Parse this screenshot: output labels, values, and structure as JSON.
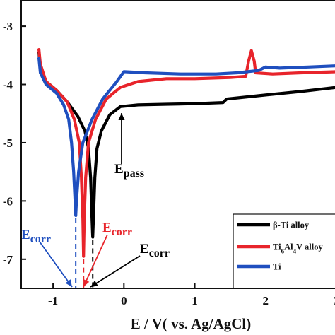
{
  "chart_data": {
    "type": "line",
    "title": "",
    "xlabel": "E / V( vs. Ag/AgCl)",
    "ylabel": "",
    "xlim": [
      -1.45,
      3.0
    ],
    "ylim": [
      -7.5,
      -2.55
    ],
    "x_ticks": [
      "-1",
      "0",
      "1",
      "2",
      "3"
    ],
    "y_ticks": [
      "-3",
      "-4",
      "-5",
      "-6",
      "-7"
    ],
    "grid": false,
    "legend_position": "bottom-right",
    "series": [
      {
        "name": "β-Ti alloy",
        "color": "#000000",
        "points": [
          [
            -1.2,
            -3.45
          ],
          [
            -1.18,
            -3.7
          ],
          [
            -1.1,
            -3.95
          ],
          [
            -0.95,
            -4.1
          ],
          [
            -0.8,
            -4.3
          ],
          [
            -0.65,
            -4.55
          ],
          [
            -0.55,
            -4.8
          ],
          [
            -0.5,
            -5.1
          ],
          [
            -0.47,
            -5.6
          ],
          [
            -0.45,
            -6.3
          ],
          [
            -0.44,
            -6.62
          ],
          [
            -0.43,
            -6.3
          ],
          [
            -0.41,
            -5.6
          ],
          [
            -0.38,
            -5.1
          ],
          [
            -0.32,
            -4.8
          ],
          [
            -0.2,
            -4.52
          ],
          [
            -0.05,
            -4.38
          ],
          [
            0.2,
            -4.35
          ],
          [
            0.6,
            -4.34
          ],
          [
            1.0,
            -4.33
          ],
          [
            1.4,
            -4.31
          ],
          [
            1.45,
            -4.25
          ],
          [
            2.0,
            -4.18
          ],
          [
            2.5,
            -4.12
          ],
          [
            3.0,
            -4.05
          ]
        ]
      },
      {
        "name": "Ti6Al4V alloy",
        "color": "#e8242b",
        "points": [
          [
            -1.2,
            -3.4
          ],
          [
            -1.18,
            -3.65
          ],
          [
            -1.1,
            -3.95
          ],
          [
            -0.95,
            -4.1
          ],
          [
            -0.8,
            -4.3
          ],
          [
            -0.7,
            -4.6
          ],
          [
            -0.63,
            -5.0
          ],
          [
            -0.6,
            -5.6
          ],
          [
            -0.58,
            -6.3
          ],
          [
            -0.57,
            -6.95
          ],
          [
            -0.56,
            -6.3
          ],
          [
            -0.54,
            -5.6
          ],
          [
            -0.5,
            -5.0
          ],
          [
            -0.4,
            -4.6
          ],
          [
            -0.25,
            -4.25
          ],
          [
            -0.05,
            -4.05
          ],
          [
            0.2,
            -3.95
          ],
          [
            0.6,
            -3.9
          ],
          [
            1.0,
            -3.9
          ],
          [
            1.5,
            -3.88
          ],
          [
            1.72,
            -3.86
          ],
          [
            1.76,
            -3.6
          ],
          [
            1.8,
            -3.42
          ],
          [
            1.84,
            -3.6
          ],
          [
            1.86,
            -3.8
          ],
          [
            2.1,
            -3.82
          ],
          [
            2.5,
            -3.8
          ],
          [
            3.0,
            -3.78
          ]
        ]
      },
      {
        "name": "Ti",
        "color": "#1f4fbf",
        "points": [
          [
            -1.2,
            -3.55
          ],
          [
            -1.18,
            -3.8
          ],
          [
            -1.1,
            -4.0
          ],
          [
            -0.95,
            -4.15
          ],
          [
            -0.85,
            -4.35
          ],
          [
            -0.78,
            -4.6
          ],
          [
            -0.74,
            -5.0
          ],
          [
            -0.71,
            -5.5
          ],
          [
            -0.69,
            -6.0
          ],
          [
            -0.68,
            -6.25
          ],
          [
            -0.67,
            -6.0
          ],
          [
            -0.64,
            -5.5
          ],
          [
            -0.58,
            -5.0
          ],
          [
            -0.45,
            -4.6
          ],
          [
            -0.3,
            -4.25
          ],
          [
            -0.1,
            -3.95
          ],
          [
            0.0,
            -3.78
          ],
          [
            0.3,
            -3.8
          ],
          [
            0.8,
            -3.82
          ],
          [
            1.3,
            -3.82
          ],
          [
            1.6,
            -3.8
          ],
          [
            1.9,
            -3.76
          ],
          [
            2.0,
            -3.7
          ],
          [
            2.2,
            -3.72
          ],
          [
            2.6,
            -3.7
          ],
          [
            3.0,
            -3.68
          ]
        ]
      }
    ],
    "annotations": [
      {
        "text": "E",
        "sub": "pass",
        "color": "#000000"
      },
      {
        "text": "E",
        "sub": "corr",
        "color": "#1f4fbf"
      },
      {
        "text": "E",
        "sub": "corr",
        "color": "#e8242b"
      },
      {
        "text": "E",
        "sub": "corr",
        "color": "#000000"
      }
    ]
  }
}
